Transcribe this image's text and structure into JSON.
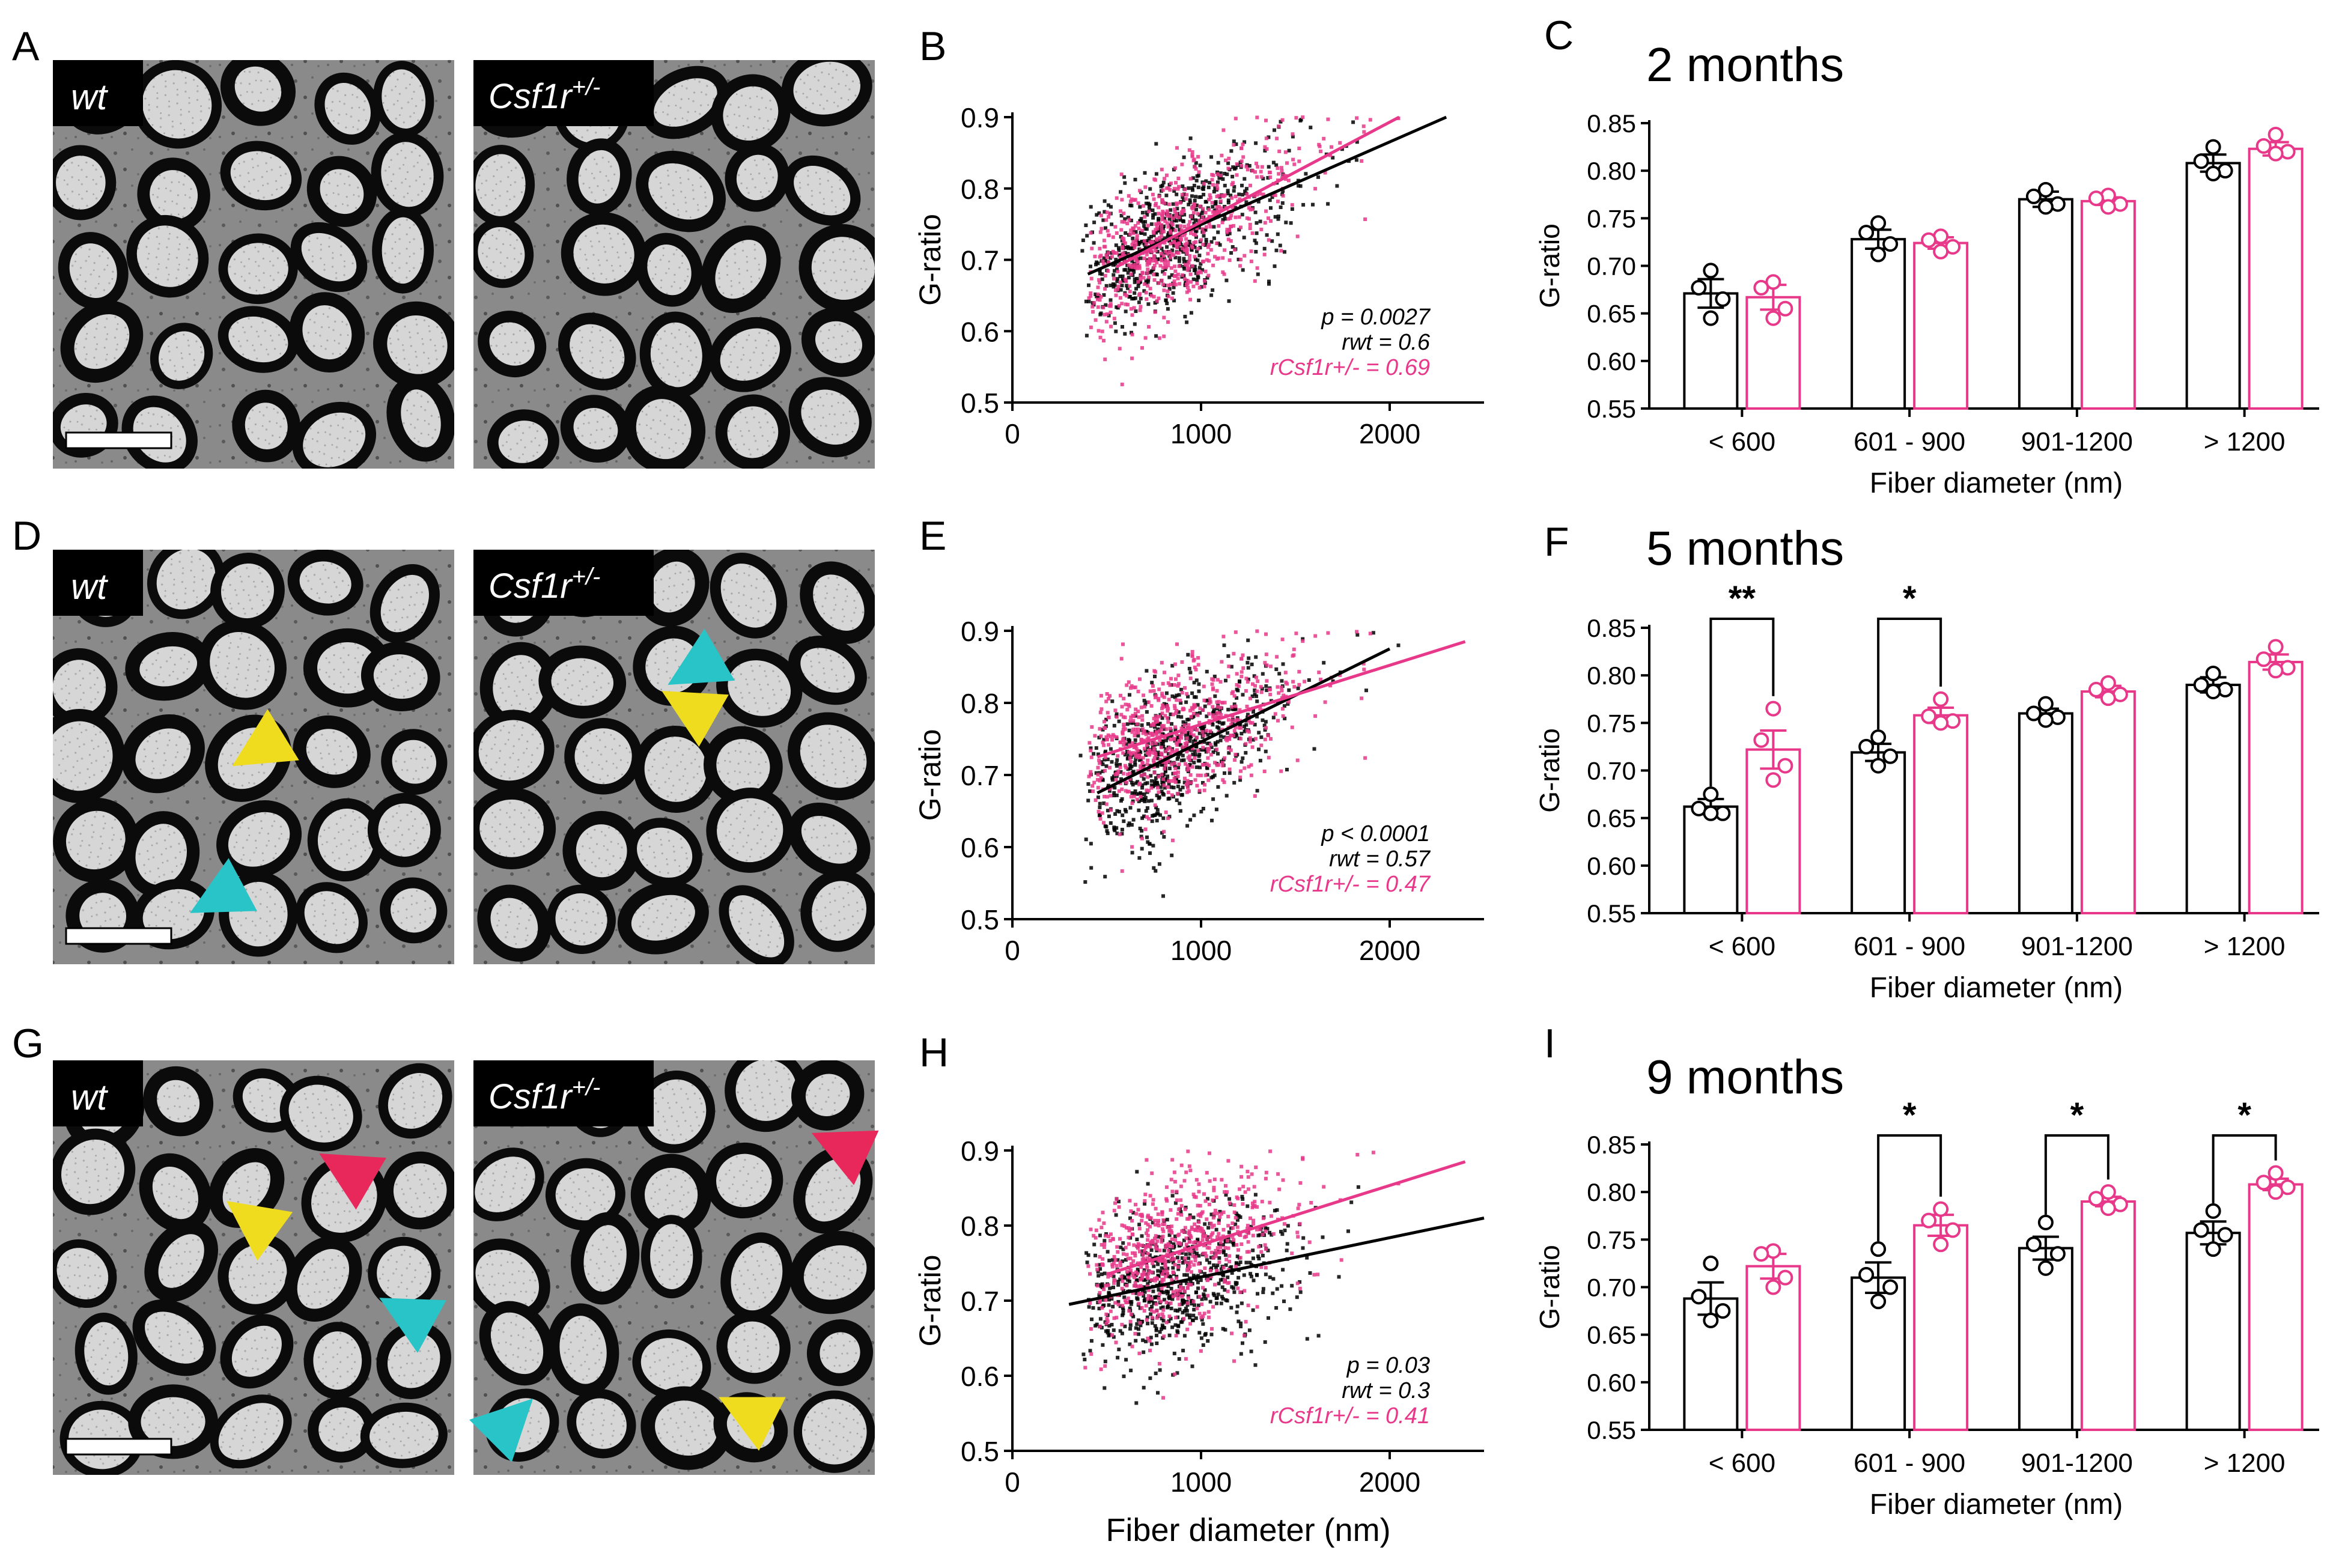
{
  "panels": {
    "A": "A",
    "B": "B",
    "C": "C",
    "D": "D",
    "E": "E",
    "F": "F",
    "G": "G",
    "H": "H",
    "I": "I"
  },
  "micro_labels": {
    "wt": "wt",
    "mut_base": "Csf1r",
    "mut_sup": "+/-"
  },
  "colors": {
    "wt": "#000000",
    "mutant": "#e8388a",
    "cyan": "#29c4c8",
    "yellow": "#f0dc1e",
    "red": "#e8285a"
  },
  "chart_data": [
    {
      "panel": "B",
      "type": "scatter",
      "title": "",
      "xlabel": "",
      "ylabel": "G-ratio",
      "xlim": [
        0,
        2500
      ],
      "ylim": [
        0.5,
        0.9
      ],
      "xticks": [
        "0",
        "1000",
        "2000"
      ],
      "yticks": [
        "0.5",
        "0.6",
        "0.7",
        "0.8",
        "0.9"
      ],
      "series": [
        {
          "name": "wt",
          "color": "#000000",
          "fit": {
            "x": [
              400,
              2300
            ],
            "y": [
              0.68,
              0.9
            ]
          }
        },
        {
          "name": "Csf1r+/-",
          "color": "#e8388a",
          "fit": {
            "x": [
              550,
              2050
            ],
            "y": [
              0.69,
              0.9
            ]
          }
        }
      ],
      "stats": [
        "p = 0.0027",
        "rwt = 0.6",
        "rCsf1r+/- = 0.69"
      ]
    },
    {
      "panel": "E",
      "type": "scatter",
      "title": "",
      "xlabel": "",
      "ylabel": "G-ratio",
      "xlim": [
        0,
        2500
      ],
      "ylim": [
        0.5,
        0.9
      ],
      "xticks": [
        "0",
        "1000",
        "2000"
      ],
      "yticks": [
        "0.5",
        "0.6",
        "0.7",
        "0.8",
        "0.9"
      ],
      "series": [
        {
          "name": "wt",
          "color": "#000000",
          "fit": {
            "x": [
              450,
              2000
            ],
            "y": [
              0.675,
              0.875
            ]
          }
        },
        {
          "name": "Csf1r+/-",
          "color": "#e8388a",
          "fit": {
            "x": [
              450,
              2400
            ],
            "y": [
              0.725,
              0.885
            ]
          }
        }
      ],
      "stats": [
        "p < 0.0001",
        "rwt = 0.57",
        "rCsf1r+/- = 0.47"
      ]
    },
    {
      "panel": "H",
      "type": "scatter",
      "title": "",
      "xlabel": "Fiber diameter (nm)",
      "ylabel": "G-ratio",
      "xlim": [
        0,
        2500
      ],
      "ylim": [
        0.5,
        0.9
      ],
      "xticks": [
        "0",
        "1000",
        "2000"
      ],
      "yticks": [
        "0.5",
        "0.6",
        "0.7",
        "0.8",
        "0.9"
      ],
      "series": [
        {
          "name": "wt",
          "color": "#000000",
          "fit": {
            "x": [
              300,
              2500
            ],
            "y": [
              0.695,
              0.81
            ]
          }
        },
        {
          "name": "Csf1r+/-",
          "color": "#e8388a",
          "fit": {
            "x": [
              500,
              2400
            ],
            "y": [
              0.735,
              0.885
            ]
          }
        }
      ],
      "stats": [
        "p = 0.03",
        "rwt = 0.3",
        "rCsf1r+/- = 0.41"
      ]
    },
    {
      "panel": "C",
      "type": "bar",
      "title": "2 months",
      "xlabel": "Fiber diameter (nm)",
      "ylabel": "G-ratio",
      "ylim": [
        0.55,
        0.85
      ],
      "yticks": [
        "0.55",
        "0.60",
        "0.65",
        "0.70",
        "0.75",
        "0.80",
        "0.85"
      ],
      "categories": [
        "< 600",
        "601 - 900",
        "901-1200",
        "> 1200"
      ],
      "series": [
        {
          "name": "wt",
          "color": "#000000",
          "values": [
            0.671,
            0.728,
            0.77,
            0.808
          ],
          "errors": [
            0.015,
            0.01,
            0.008,
            0.009
          ],
          "points": [
            [
              0.695,
              0.677,
              0.665,
              0.645
            ],
            [
              0.745,
              0.735,
              0.723,
              0.712
            ],
            [
              0.78,
              0.773,
              0.765,
              0.762
            ],
            [
              0.825,
              0.81,
              0.8,
              0.797
            ]
          ]
        },
        {
          "name": "Csf1r+/-",
          "color": "#e8388a",
          "values": [
            0.667,
            0.724,
            0.768,
            0.823
          ],
          "errors": [
            0.013,
            0.006,
            0.004,
            0.007
          ],
          "points": [
            [
              0.683,
              0.677,
              0.655,
              0.645
            ],
            [
              0.731,
              0.727,
              0.72,
              0.715
            ],
            [
              0.774,
              0.771,
              0.765,
              0.762
            ],
            [
              0.838,
              0.826,
              0.82,
              0.818
            ]
          ]
        }
      ],
      "significance": []
    },
    {
      "panel": "F",
      "type": "bar",
      "title": "5 months",
      "xlabel": "Fiber diameter (nm)",
      "ylabel": "G-ratio",
      "ylim": [
        0.55,
        0.85
      ],
      "yticks": [
        "0.55",
        "0.60",
        "0.65",
        "0.70",
        "0.75",
        "0.80",
        "0.85"
      ],
      "categories": [
        "< 600",
        "601 - 900",
        "901-1200",
        "> 1200"
      ],
      "series": [
        {
          "name": "wt",
          "color": "#000000",
          "values": [
            0.662,
            0.719,
            0.76,
            0.79
          ],
          "errors": [
            0.008,
            0.009,
            0.005,
            0.008
          ],
          "points": [
            [
              0.675,
              0.66,
              0.655,
              0.655
            ],
            [
              0.735,
              0.725,
              0.715,
              0.705
            ],
            [
              0.77,
              0.76,
              0.756,
              0.753
            ],
            [
              0.802,
              0.79,
              0.785,
              0.783
            ]
          ]
        },
        {
          "name": "Csf1r+/-",
          "color": "#e8388a",
          "values": [
            0.722,
            0.758,
            0.783,
            0.814
          ],
          "errors": [
            0.02,
            0.008,
            0.006,
            0.008
          ],
          "points": [
            [
              0.765,
              0.732,
              0.705,
              0.69
            ],
            [
              0.775,
              0.757,
              0.752,
              0.75
            ],
            [
              0.792,
              0.785,
              0.78,
              0.776
            ],
            [
              0.83,
              0.817,
              0.808,
              0.805
            ]
          ]
        }
      ],
      "significance": [
        {
          "category": 0,
          "label": "**"
        },
        {
          "category": 1,
          "label": "*"
        }
      ]
    },
    {
      "panel": "I",
      "type": "bar",
      "title": "9 months",
      "xlabel": "Fiber diameter (nm)",
      "ylabel": "G-ratio",
      "ylim": [
        0.55,
        0.85
      ],
      "yticks": [
        "0.55",
        "0.60",
        "0.65",
        "0.70",
        "0.75",
        "0.80",
        "0.85"
      ],
      "categories": [
        "< 600",
        "601 - 900",
        "901-1200",
        "> 1200"
      ],
      "series": [
        {
          "name": "wt",
          "color": "#000000",
          "values": [
            0.688,
            0.71,
            0.741,
            0.757
          ],
          "errors": [
            0.017,
            0.016,
            0.012,
            0.012
          ],
          "points": [
            [
              0.725,
              0.69,
              0.675,
              0.665
            ],
            [
              0.74,
              0.713,
              0.7,
              0.685
            ],
            [
              0.768,
              0.745,
              0.735,
              0.72
            ],
            [
              0.78,
              0.76,
              0.755,
              0.74
            ]
          ]
        },
        {
          "name": "Csf1r+/-",
          "color": "#e8388a",
          "values": [
            0.722,
            0.765,
            0.79,
            0.808
          ],
          "errors": [
            0.013,
            0.011,
            0.005,
            0.006
          ],
          "points": [
            [
              0.738,
              0.735,
              0.71,
              0.7
            ],
            [
              0.782,
              0.77,
              0.76,
              0.745
            ],
            [
              0.8,
              0.793,
              0.787,
              0.783
            ],
            [
              0.82,
              0.81,
              0.805,
              0.8
            ]
          ]
        }
      ],
      "significance": [
        {
          "category": 1,
          "label": "*"
        },
        {
          "category": 2,
          "label": "*"
        },
        {
          "category": 3,
          "label": "*"
        }
      ]
    }
  ]
}
